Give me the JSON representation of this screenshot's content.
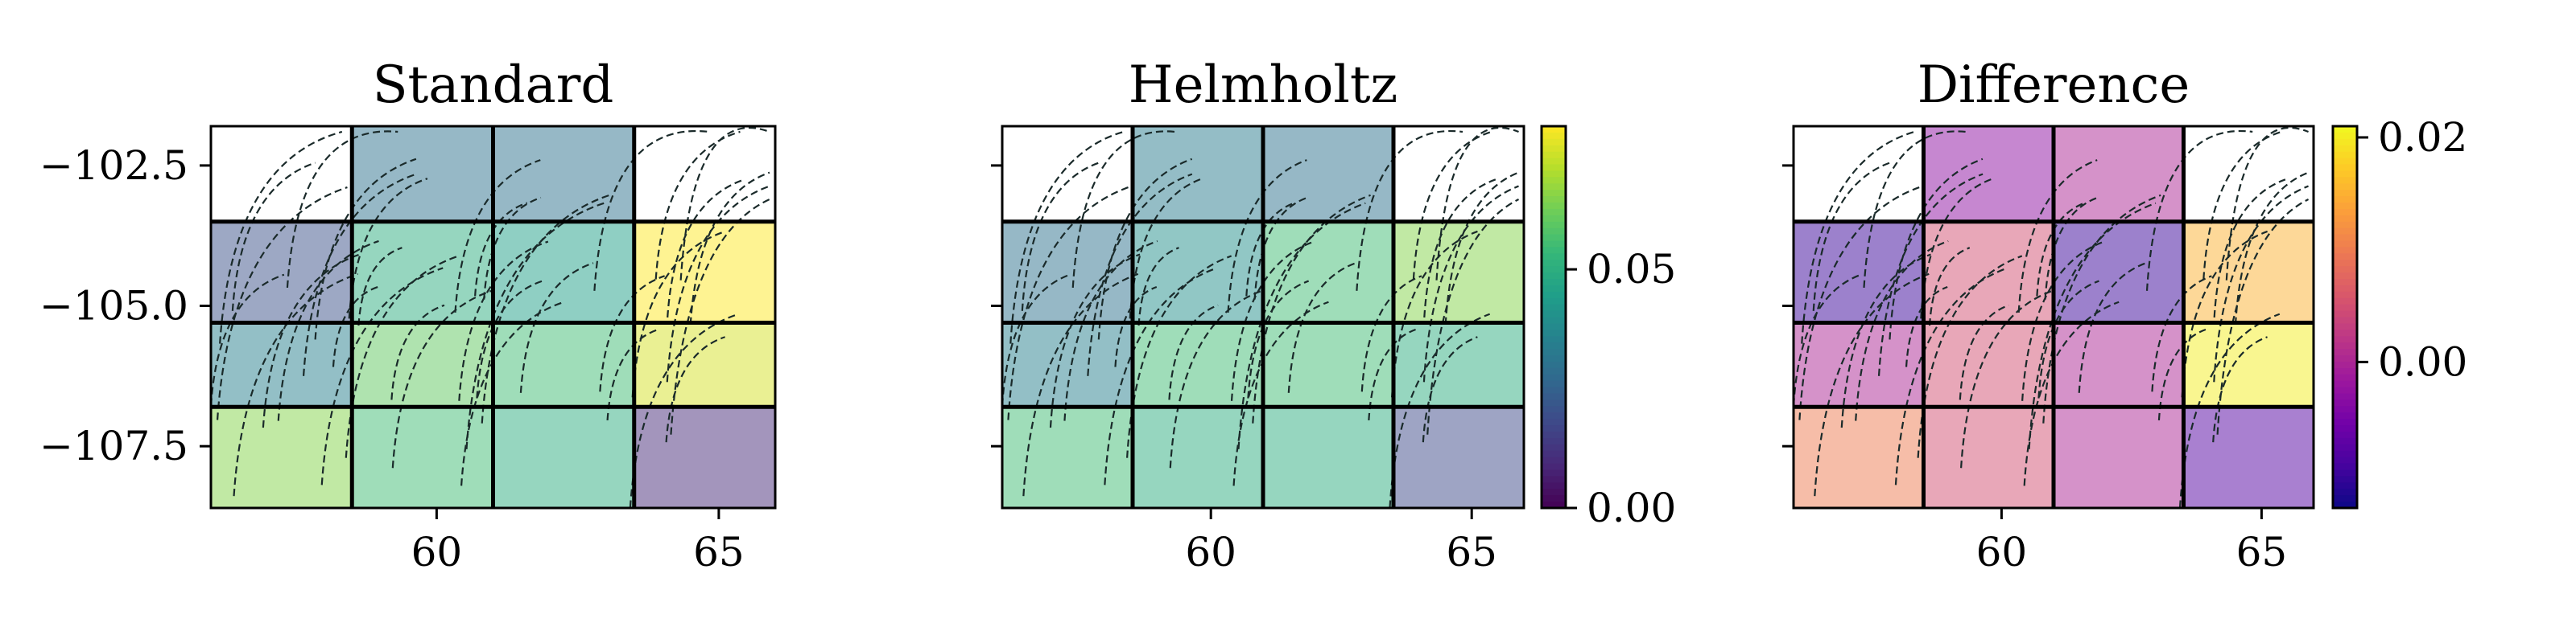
{
  "chart_data": [
    {
      "type": "heatmap",
      "title": "Standard",
      "x_edges": [
        56.0,
        58.5,
        61.0,
        63.5,
        66.0
      ],
      "y_edges": [
        -108.6,
        -106.8,
        -105.3,
        -103.5,
        -101.8
      ],
      "xlim": [
        56.0,
        66.0
      ],
      "ylim": [
        -108.6,
        -101.8
      ],
      "xticks": [
        60,
        65
      ],
      "xtick_labels": [
        "60",
        "65"
      ],
      "yticks": [
        -102.5,
        -105.0,
        -107.5
      ],
      "ytick_labels": [
        "−102.5",
        "−105.0",
        "−107.5"
      ],
      "colormap": "viridis",
      "vmin": 0.0,
      "vmax": 0.08,
      "values": [
        [
          null,
          0.03,
          0.03,
          null
        ],
        [
          0.02,
          0.05,
          0.045,
          0.08
        ],
        [
          0.035,
          0.06,
          0.055,
          0.075
        ],
        [
          0.065,
          0.055,
          0.05,
          0.01
        ]
      ]
    },
    {
      "type": "heatmap",
      "title": "Helmholtz",
      "x_edges": [
        56.0,
        58.5,
        61.0,
        63.5,
        66.0
      ],
      "y_edges": [
        -108.6,
        -106.8,
        -105.3,
        -103.5,
        -101.8
      ],
      "xlim": [
        56.0,
        66.0
      ],
      "ylim": [
        -108.6,
        -101.8
      ],
      "xticks": [
        60,
        65
      ],
      "xtick_labels": [
        "60",
        "65"
      ],
      "colormap": "viridis",
      "vmin": 0.0,
      "vmax": 0.08,
      "colorbar_ticks": [
        0.0,
        0.05
      ],
      "colorbar_tick_labels": [
        "0.00",
        "0.05"
      ],
      "values": [
        [
          null,
          0.033,
          0.03,
          null
        ],
        [
          0.03,
          0.04,
          0.055,
          0.065
        ],
        [
          0.035,
          0.055,
          0.055,
          0.05
        ],
        [
          0.055,
          0.05,
          0.05,
          0.018
        ]
      ]
    },
    {
      "type": "heatmap",
      "title": "Difference",
      "x_edges": [
        56.0,
        58.5,
        61.0,
        63.5,
        66.0
      ],
      "y_edges": [
        -108.6,
        -106.8,
        -105.3,
        -103.5,
        -101.8
      ],
      "xlim": [
        56.0,
        66.0
      ],
      "ylim": [
        -108.6,
        -101.8
      ],
      "xticks": [
        60,
        65
      ],
      "xtick_labels": [
        "60",
        "65"
      ],
      "colormap": "plasma",
      "vmin": -0.013,
      "vmax": 0.021,
      "colorbar_ticks": [
        0.0,
        0.02
      ],
      "colorbar_tick_labels": [
        "0.00",
        "0.02"
      ],
      "values": [
        [
          null,
          -0.003,
          0.0,
          null
        ],
        [
          -0.01,
          0.005,
          -0.01,
          0.015
        ],
        [
          0.0,
          0.005,
          0.0,
          0.02
        ],
        [
          0.01,
          0.005,
          0.0,
          -0.008
        ]
      ]
    }
  ],
  "colors": {
    "viridis": [
      "#440154",
      "#482878",
      "#3e4989",
      "#31688e",
      "#26828e",
      "#1f9e89",
      "#35b779",
      "#6ece58",
      "#b5de2b",
      "#fde725"
    ],
    "plasma": [
      "#0d0887",
      "#46039f",
      "#7201a8",
      "#9c179e",
      "#bd3786",
      "#d8576b",
      "#ed7953",
      "#fb9f3a",
      "#fdca26",
      "#f0f921"
    ],
    "grid_line": "#000000",
    "streamline": "#1a2a2a"
  }
}
